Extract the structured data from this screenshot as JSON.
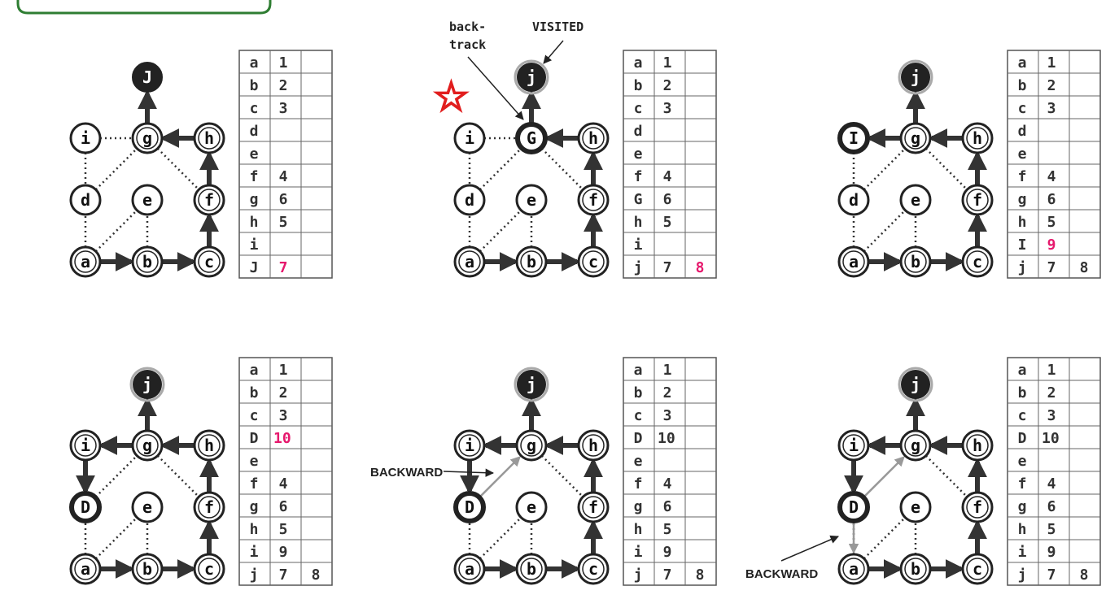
{
  "colors": {
    "node_fill": "#ffffff",
    "node_stroke": "#222222",
    "dark_node": "#222222",
    "visited_ring": "#aaaaaa",
    "gray_edge": "#999999",
    "highlight": "#e6196d",
    "frame_green": "#2e7d32",
    "star_red": "#e11d1d"
  },
  "node_labels": [
    "a",
    "b",
    "c",
    "d",
    "e",
    "f",
    "g",
    "h",
    "i",
    "j"
  ],
  "panels": [
    {
      "name": "panel-1",
      "labels": {
        "j": "J"
      },
      "dark": [
        "j"
      ],
      "ring": [],
      "bold": [
        "a",
        "b",
        "c",
        "f",
        "g",
        "h"
      ],
      "gray_edges": [],
      "table": [
        [
          "a",
          "1",
          ""
        ],
        [
          "b",
          "2",
          ""
        ],
        [
          "c",
          "3",
          ""
        ],
        [
          "d",
          "",
          ""
        ],
        [
          "e",
          "",
          ""
        ],
        [
          "f",
          "4",
          ""
        ],
        [
          "g",
          "6",
          ""
        ],
        [
          "h",
          "5",
          ""
        ],
        [
          "i",
          "",
          ""
        ],
        [
          "J",
          "7",
          ""
        ]
      ],
      "highlight_cells": [
        [
          9,
          1
        ]
      ]
    },
    {
      "name": "panel-2",
      "labels": {
        "g": "G"
      },
      "dark": [
        "j"
      ],
      "ring": [
        "j"
      ],
      "bold": [
        "a",
        "b",
        "c",
        "f",
        "h",
        "g"
      ],
      "thick": [
        "g"
      ],
      "gray_edges": [],
      "table": [
        [
          "a",
          "1",
          ""
        ],
        [
          "b",
          "2",
          ""
        ],
        [
          "c",
          "3",
          ""
        ],
        [
          "d",
          "",
          ""
        ],
        [
          "e",
          "",
          ""
        ],
        [
          "f",
          "4",
          ""
        ],
        [
          "G",
          "6",
          ""
        ],
        [
          "h",
          "5",
          ""
        ],
        [
          "i",
          "",
          ""
        ],
        [
          "j",
          "7",
          "8"
        ]
      ],
      "highlight_cells": [
        [
          9,
          2
        ]
      ]
    },
    {
      "name": "panel-3",
      "labels": {
        "i": "I"
      },
      "dark": [
        "j"
      ],
      "ring": [
        "j"
      ],
      "bold": [
        "a",
        "b",
        "c",
        "f",
        "g",
        "h"
      ],
      "thick": [
        "i"
      ],
      "edge_gi": "arrow",
      "gray_edges": [],
      "table": [
        [
          "a",
          "1",
          ""
        ],
        [
          "b",
          "2",
          ""
        ],
        [
          "c",
          "3",
          ""
        ],
        [
          "d",
          "",
          ""
        ],
        [
          "e",
          "",
          ""
        ],
        [
          "f",
          "4",
          ""
        ],
        [
          "g",
          "6",
          ""
        ],
        [
          "h",
          "5",
          ""
        ],
        [
          "I",
          "9",
          ""
        ],
        [
          "j",
          "7",
          "8"
        ]
      ],
      "highlight_cells": [
        [
          8,
          1
        ]
      ]
    },
    {
      "name": "panel-4",
      "labels": {
        "d": "D"
      },
      "dark": [
        "j"
      ],
      "ring": [
        "j"
      ],
      "bold": [
        "a",
        "b",
        "c",
        "f",
        "g",
        "h",
        "i"
      ],
      "thick": [
        "d"
      ],
      "edge_gi": "arrow",
      "edge_id": "arrow",
      "gray_edges": [],
      "table": [
        [
          "a",
          "1",
          ""
        ],
        [
          "b",
          "2",
          ""
        ],
        [
          "c",
          "3",
          ""
        ],
        [
          "D",
          "10",
          ""
        ],
        [
          "e",
          "",
          ""
        ],
        [
          "f",
          "4",
          ""
        ],
        [
          "g",
          "6",
          ""
        ],
        [
          "h",
          "5",
          ""
        ],
        [
          "i",
          "9",
          ""
        ],
        [
          "j",
          "7",
          "8"
        ]
      ],
      "highlight_cells": [
        [
          3,
          1
        ]
      ]
    },
    {
      "name": "panel-5",
      "labels": {
        "d": "D"
      },
      "dark": [
        "j"
      ],
      "ring": [
        "j"
      ],
      "bold": [
        "a",
        "b",
        "c",
        "f",
        "g",
        "h",
        "i"
      ],
      "thick": [
        "d"
      ],
      "edge_gi": "arrow",
      "edge_id": "arrow",
      "gray_edges": [
        "dg"
      ],
      "table": [
        [
          "a",
          "1",
          ""
        ],
        [
          "b",
          "2",
          ""
        ],
        [
          "c",
          "3",
          ""
        ],
        [
          "D",
          "10",
          ""
        ],
        [
          "e",
          "",
          ""
        ],
        [
          "f",
          "4",
          ""
        ],
        [
          "g",
          "6",
          ""
        ],
        [
          "h",
          "5",
          ""
        ],
        [
          "i",
          "9",
          ""
        ],
        [
          "j",
          "7",
          "8"
        ]
      ],
      "highlight_cells": []
    },
    {
      "name": "panel-6",
      "labels": {
        "d": "D"
      },
      "dark": [
        "j"
      ],
      "ring": [
        "j"
      ],
      "bold": [
        "a",
        "b",
        "c",
        "f",
        "g",
        "h",
        "i"
      ],
      "thick": [
        "d"
      ],
      "edge_gi": "arrow",
      "edge_id": "arrow",
      "gray_edges": [
        "dg",
        "da"
      ],
      "table": [
        [
          "a",
          "1",
          ""
        ],
        [
          "b",
          "2",
          ""
        ],
        [
          "c",
          "3",
          ""
        ],
        [
          "D",
          "10",
          ""
        ],
        [
          "e",
          "",
          ""
        ],
        [
          "f",
          "4",
          ""
        ],
        [
          "g",
          "6",
          ""
        ],
        [
          "h",
          "5",
          ""
        ],
        [
          "i",
          "9",
          ""
        ],
        [
          "j",
          "7",
          "8"
        ]
      ],
      "highlight_cells": []
    }
  ],
  "annotations": {
    "backtrack": "back-\ntrack",
    "visited": "VISITED",
    "backward": "BACKWARD"
  }
}
